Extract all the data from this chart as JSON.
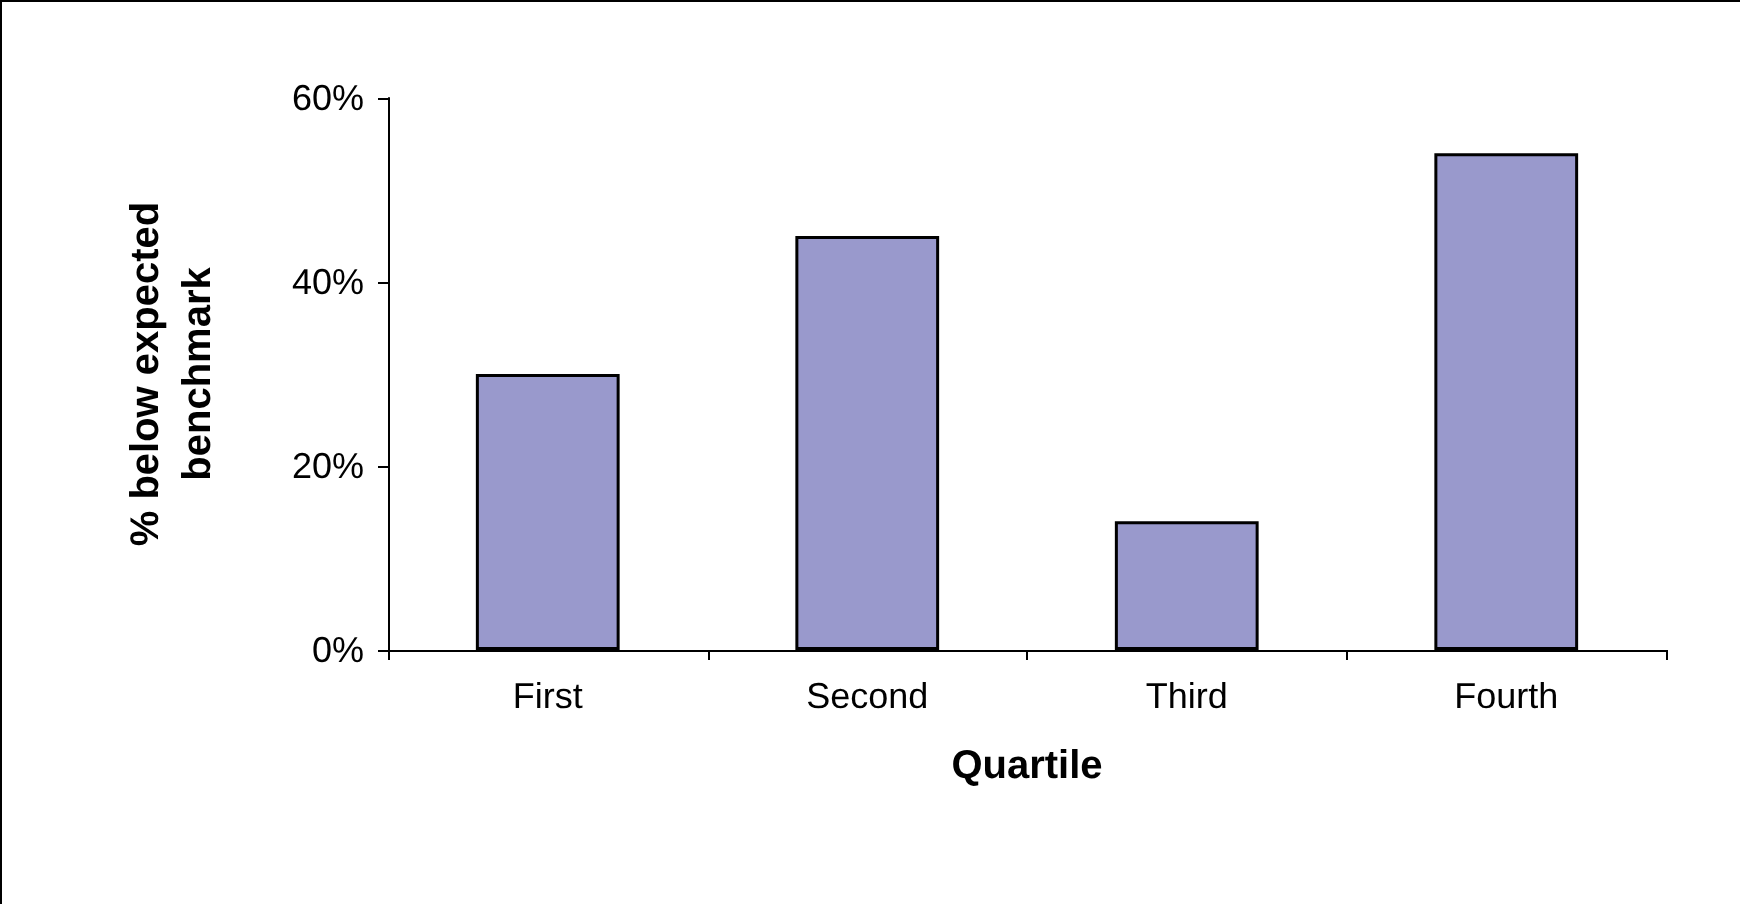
{
  "chart_data": {
    "type": "bar",
    "xlabel": "Quartile",
    "ylabel": "% below expected benchmark",
    "categories": [
      "First",
      "Second",
      "Third",
      "Fourth"
    ],
    "values": [
      30,
      45,
      14,
      54
    ],
    "color": "#9999cc",
    "ylim": [
      0,
      60
    ],
    "yticks": [
      {
        "value": 0,
        "label": "0%"
      },
      {
        "value": 20,
        "label": "20%"
      },
      {
        "value": 40,
        "label": "40%"
      },
      {
        "value": 60,
        "label": "60%"
      }
    ],
    "grid": false
  }
}
